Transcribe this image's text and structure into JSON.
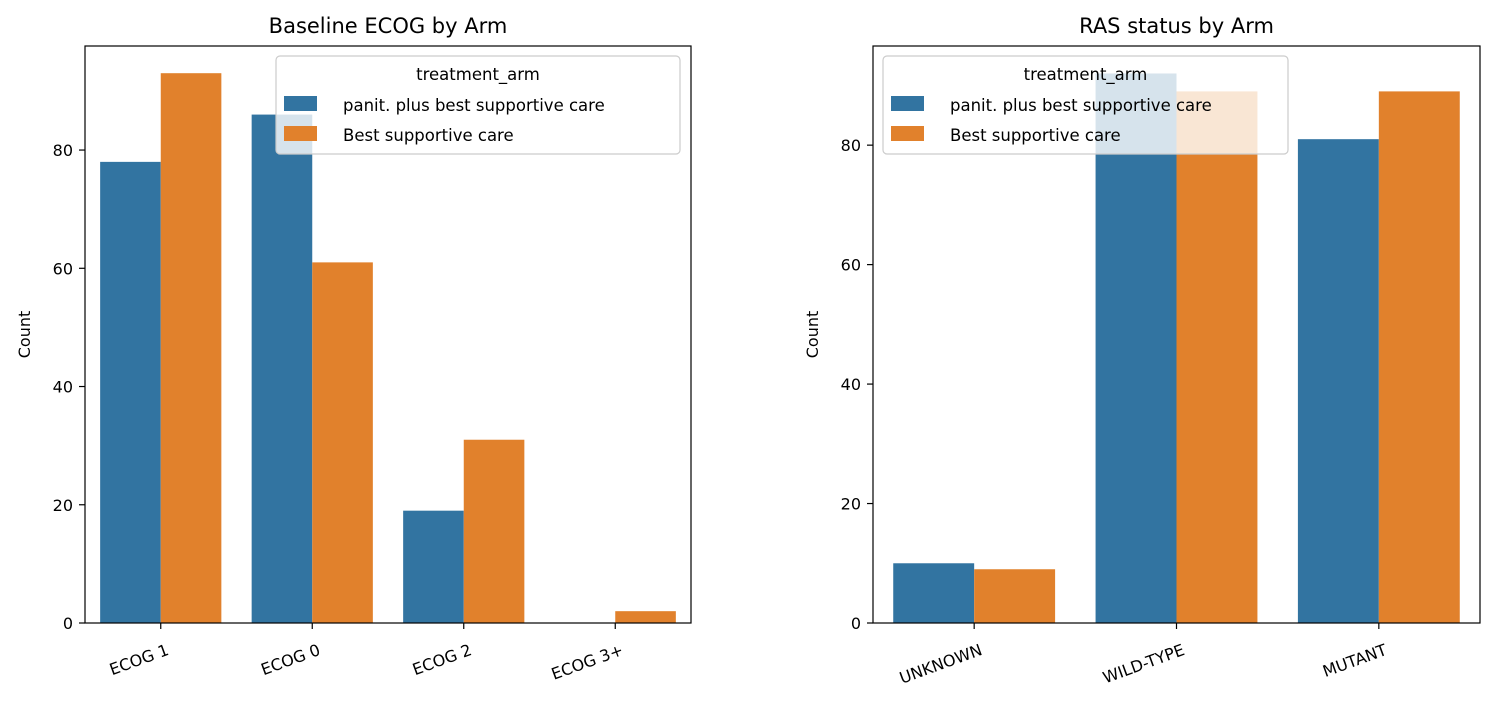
{
  "chart_data": [
    {
      "type": "bar",
      "title": "Baseline ECOG by Arm",
      "xlabel": "",
      "ylabel": "Count",
      "categories": [
        "ECOG 1",
        "ECOG 0",
        "ECOG 2",
        "ECOG 3+"
      ],
      "series": [
        {
          "name": "panit. plus best supportive care",
          "color": "#3274a1",
          "values": [
            78,
            86,
            19,
            0
          ]
        },
        {
          "name": "Best supportive care",
          "color": "#e1812c",
          "values": [
            93,
            61,
            31,
            2
          ]
        }
      ],
      "ylim": [
        0,
        97.6
      ],
      "yticks": [
        0,
        20,
        40,
        60,
        80
      ],
      "legend": {
        "title": "treatment_arm",
        "position": "top-right"
      },
      "grid": false
    },
    {
      "type": "bar",
      "title": "RAS status by Arm",
      "xlabel": "",
      "ylabel": "Count",
      "categories": [
        "UNKNOWN",
        "WILD-TYPE",
        "MUTANT"
      ],
      "series": [
        {
          "name": "panit. plus best supportive care",
          "color": "#3274a1",
          "values": [
            10,
            92,
            81
          ]
        },
        {
          "name": "Best supportive care",
          "color": "#e1812c",
          "values": [
            9,
            89,
            89
          ]
        }
      ],
      "ylim": [
        0,
        96.6
      ],
      "yticks": [
        0,
        20,
        40,
        60,
        80
      ],
      "legend": {
        "title": "treatment_arm",
        "position": "top-left"
      },
      "grid": false
    }
  ]
}
